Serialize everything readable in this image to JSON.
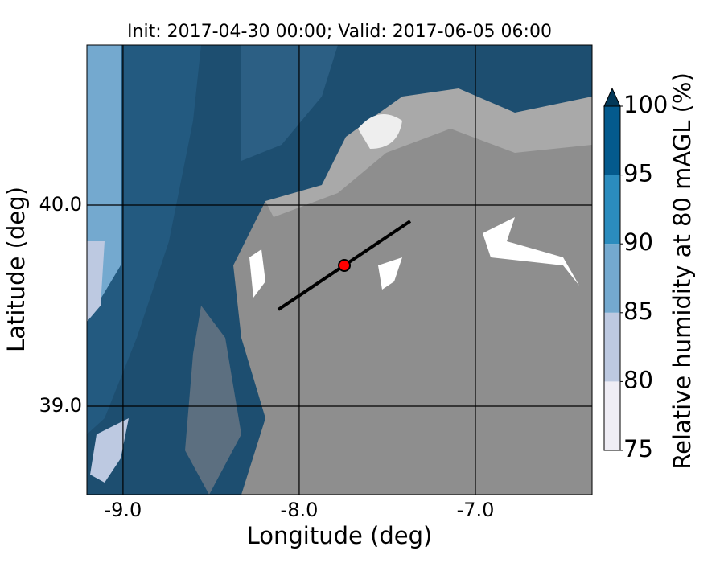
{
  "chart_data": {
    "type": "map",
    "title": "Init: 2017-04-30 00:00; Valid: 2017-06-05 06:00",
    "xlabel": "Longitude (deg)",
    "ylabel": "Latitude (deg)",
    "xlim": [
      -9.205,
      -6.338
    ],
    "ylim": [
      38.56,
      40.796
    ],
    "xticks": [
      {
        "value": -9,
        "label": "-9.0"
      },
      {
        "value": -8,
        "label": "-8.0"
      },
      {
        "value": -7,
        "label": "-7.0"
      }
    ],
    "yticks": [
      {
        "value": 39,
        "label": "39.0"
      },
      {
        "value": 40,
        "label": "40.0"
      }
    ],
    "grid": true,
    "colorbar": {
      "label": "Relative humidity at 80 mAGL (%)",
      "lim": [
        75,
        100
      ],
      "ticks": [
        75,
        80,
        85,
        90,
        95,
        100
      ],
      "colors": [
        "#efedf5",
        "#bdc9e1",
        "#74a9cf",
        "#2b8cbe",
        "#045a8d"
      ],
      "extend_color": "#023858"
    },
    "line": {
      "lon": [
        -8.119,
        -7.37
      ],
      "lat": [
        39.48,
        39.92
      ],
      "color": "#000000"
    },
    "marker": {
      "lon": -7.744,
      "lat": 39.7,
      "color": "#ff0000"
    }
  }
}
